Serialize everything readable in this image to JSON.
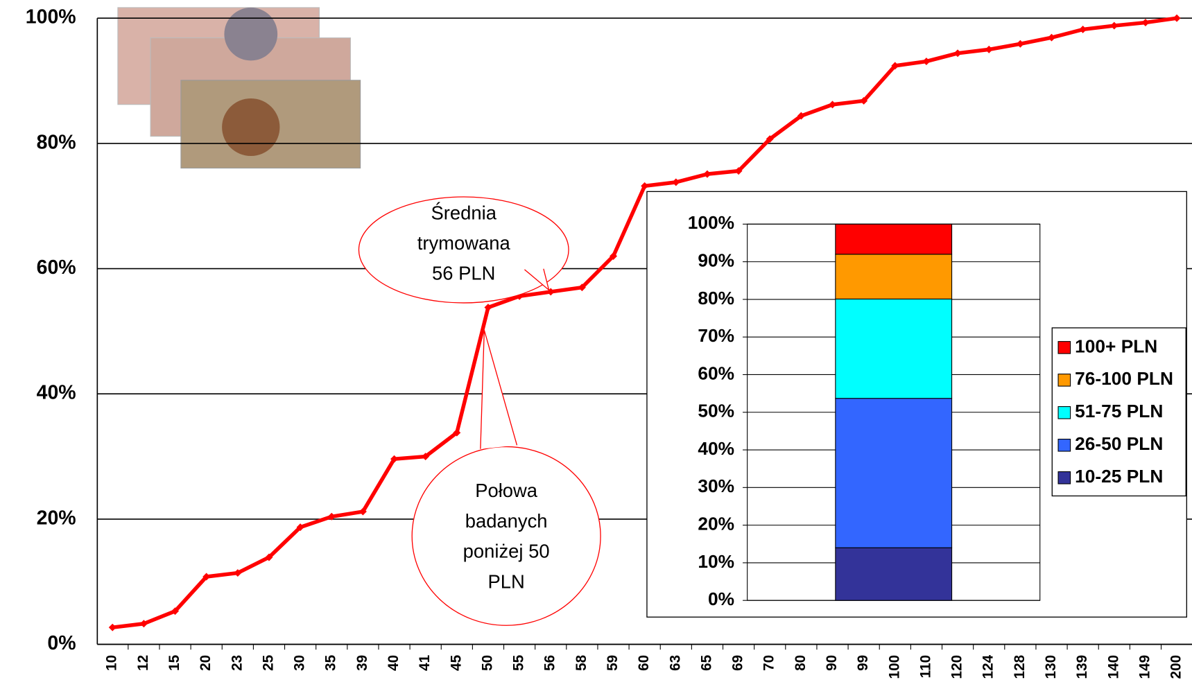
{
  "chart_data": [
    {
      "type": "line",
      "categories": [
        "10",
        "12",
        "15",
        "20",
        "23",
        "25",
        "30",
        "35",
        "39",
        "40",
        "41",
        "45",
        "50",
        "55",
        "56",
        "58",
        "59",
        "60",
        "63",
        "65",
        "69",
        "70",
        "80",
        "90",
        "99",
        "100",
        "110",
        "120",
        "124",
        "128",
        "130",
        "139",
        "140",
        "149",
        "200"
      ],
      "values": [
        2.7,
        3.3,
        5.3,
        10.8,
        11.4,
        13.9,
        18.7,
        20.4,
        21.2,
        29.6,
        30,
        33.8,
        53.8,
        55.6,
        56.3,
        57,
        62,
        73.2,
        73.8,
        75.1,
        75.6,
        80.7,
        84.4,
        86.2,
        86.8,
        92.4,
        93.1,
        94.4,
        95,
        95.9,
        96.9,
        98.2,
        98.8,
        99.3,
        100
      ],
      "color": "#ff0000",
      "ylim": [
        0,
        100
      ],
      "yticks": [
        {
          "value": 0,
          "label": "0%"
        },
        {
          "value": 20,
          "label": "20%"
        },
        {
          "value": 40,
          "label": "40%"
        },
        {
          "value": 60,
          "label": "60%"
        },
        {
          "value": 80,
          "label": "80%"
        },
        {
          "value": 100,
          "label": "100%"
        }
      ],
      "grid": true,
      "annotations": [
        {
          "lines": [
            "Średnia",
            "trymowana",
            "56 PLN"
          ]
        },
        {
          "lines": [
            "Połowa",
            "badanych",
            "poniżej 50",
            "PLN"
          ]
        }
      ]
    },
    {
      "type": "bar",
      "stacked": true,
      "categories": [
        null
      ],
      "series": [
        {
          "name": "10-25 PLN",
          "color": "#333399",
          "values": [
            14
          ]
        },
        {
          "name": "26-50 PLN",
          "color": "#3366ff",
          "values": [
            39.7
          ]
        },
        {
          "name": "51-75 PLN",
          "color": "#00ffff",
          "values": [
            26.4
          ]
        },
        {
          "name": "76-100 PLN",
          "color": "#ff9900",
          "values": [
            11.9
          ]
        },
        {
          "name": "100+ PLN",
          "color": "#ff0000",
          "values": [
            8
          ]
        }
      ],
      "ylim": [
        0,
        100
      ],
      "yticks": [
        {
          "value": 0,
          "label": "0%"
        },
        {
          "value": 10,
          "label": "10%"
        },
        {
          "value": 20,
          "label": "20%"
        },
        {
          "value": 30,
          "label": "30%"
        },
        {
          "value": 40,
          "label": "40%"
        },
        {
          "value": 50,
          "label": "50%"
        },
        {
          "value": 60,
          "label": "60%"
        },
        {
          "value": 70,
          "label": "70%"
        },
        {
          "value": 80,
          "label": "80%"
        },
        {
          "value": 90,
          "label": "90%"
        },
        {
          "value": 100,
          "label": "100%"
        }
      ],
      "grid": true,
      "legend": "right"
    }
  ]
}
